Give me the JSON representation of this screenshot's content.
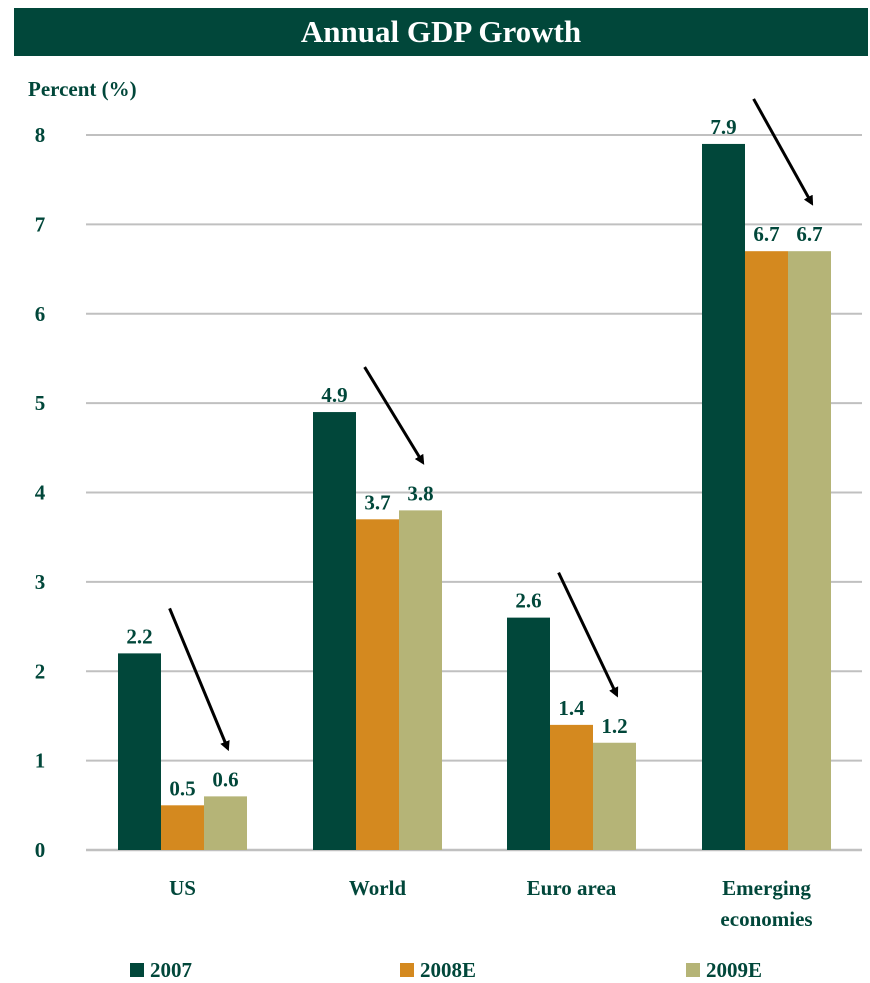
{
  "chart_data": {
    "type": "bar",
    "title": "Annual GDP Growth",
    "ylabel": "Percent (%)",
    "xlabel": "",
    "ylim": [
      0,
      8
    ],
    "yticks": [
      0,
      1,
      2,
      3,
      4,
      5,
      6,
      7,
      8
    ],
    "grid": true,
    "legend_position": "bottom",
    "categories": [
      [
        "US"
      ],
      [
        "World"
      ],
      [
        "Euro area"
      ],
      [
        "Emerging",
        "economies"
      ]
    ],
    "series": [
      {
        "name": "2007",
        "color": "#01473a",
        "values": [
          2.2,
          4.9,
          2.6,
          7.9
        ]
      },
      {
        "name": "2008E",
        "color": "#d4891f",
        "values": [
          0.5,
          3.7,
          1.4,
          6.7
        ]
      },
      {
        "name": "2009E",
        "color": "#b5b477",
        "values": [
          0.6,
          3.8,
          1.2,
          6.7
        ]
      }
    ],
    "annotations": "downward arrows from 2007 bar toward 2009E bar in each group"
  },
  "colors": {
    "title_bg": "#01473a",
    "label_text": "#01473a",
    "gridline": "#c0c0c0",
    "arrow": "#000000"
  }
}
